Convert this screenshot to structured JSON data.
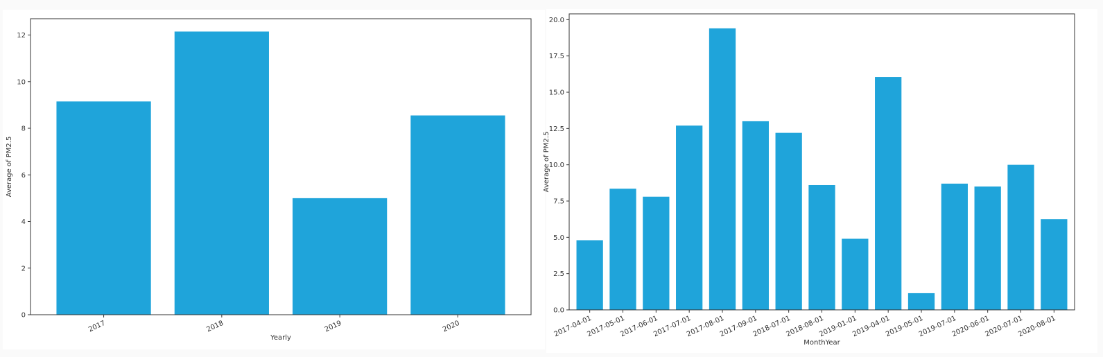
{
  "chart_data": [
    {
      "type": "bar",
      "title": "",
      "xlabel": "Yearly",
      "ylabel": "Average of PM2.5",
      "categories": [
        "2017",
        "2018",
        "2019",
        "2020"
      ],
      "values": [
        9.15,
        12.15,
        5.0,
        8.55
      ],
      "ylim": [
        0,
        12.7
      ],
      "yticks": [
        0,
        2,
        4,
        6,
        8,
        10,
        12
      ],
      "ytick_labels": [
        "0",
        "2",
        "4",
        "6",
        "8",
        "10",
        "12"
      ],
      "grid": false,
      "bar_color": "#1fa4da"
    },
    {
      "type": "bar",
      "title": "",
      "xlabel": "MonthYear",
      "ylabel": "Average of PM2.5",
      "categories": [
        "2017-04-01",
        "2017-05-01",
        "2017-06-01",
        "2017-07-01",
        "2017-08-01",
        "2017-09-01",
        "2018-07-01",
        "2018-08-01",
        "2019-01-01",
        "2019-04-01",
        "2019-05-01",
        "2019-07-01",
        "2020-06-01",
        "2020-07-01",
        "2020-08-01"
      ],
      "values": [
        4.8,
        8.35,
        7.8,
        12.7,
        19.4,
        13.0,
        12.2,
        8.6,
        4.9,
        16.05,
        1.15,
        8.7,
        8.5,
        10.0,
        6.25
      ],
      "ylim": [
        0,
        20.4
      ],
      "yticks": [
        0,
        2.5,
        5,
        7.5,
        10,
        12.5,
        15,
        17.5,
        20
      ],
      "ytick_labels": [
        "0.0",
        "2.5",
        "5.0",
        "7.5",
        "10.0",
        "12.5",
        "15.0",
        "17.5",
        "20.0"
      ],
      "grid": false,
      "bar_color": "#1fa4da"
    }
  ]
}
